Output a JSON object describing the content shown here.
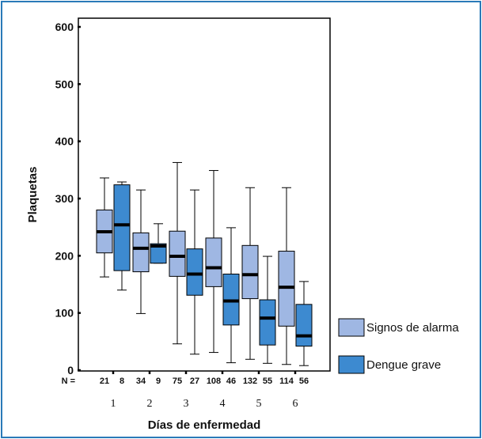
{
  "chart_data": {
    "type": "boxplot",
    "xlabel": "Días de enfermedad",
    "ylabel": "Plaquetas",
    "ylim": [
      0,
      600
    ],
    "yticks": [
      0,
      100,
      200,
      300,
      400,
      500,
      600
    ],
    "categories": [
      "1",
      "2",
      "3",
      "4",
      "5",
      "6"
    ],
    "n_prefix": "N =",
    "legend_position": "right",
    "series": [
      {
        "name": "Signos de alarma",
        "color": "#9fb7e3",
        "n": [
          "21",
          "34",
          "75",
          "108",
          "132",
          "114"
        ],
        "boxes": [
          {
            "min": 163,
            "q1": 205,
            "median": 242,
            "q3": 280,
            "max": 336
          },
          {
            "min": 99,
            "q1": 172,
            "median": 213,
            "q3": 240,
            "max": 315
          },
          {
            "min": 46,
            "q1": 164,
            "median": 199,
            "q3": 243,
            "max": 363
          },
          {
            "min": 31,
            "q1": 146,
            "median": 179,
            "q3": 231,
            "max": 349
          },
          {
            "min": 19,
            "q1": 125,
            "median": 167,
            "q3": 218,
            "max": 319
          },
          {
            "min": 10,
            "q1": 77,
            "median": 145,
            "q3": 208,
            "max": 319
          }
        ]
      },
      {
        "name": "Dengue grave",
        "color": "#3d8ad0",
        "n": [
          "8",
          "9",
          "27",
          "46",
          "55",
          "56"
        ],
        "boxes": [
          {
            "min": 140,
            "q1": 174,
            "median": 254,
            "q3": 324,
            "max": 329
          },
          {
            "min": 187,
            "q1": 187,
            "median": 217,
            "q3": 221,
            "max": 256
          },
          {
            "min": 28,
            "q1": 131,
            "median": 168,
            "q3": 212,
            "max": 315
          },
          {
            "min": 13,
            "q1": 79,
            "median": 121,
            "q3": 168,
            "max": 249
          },
          {
            "min": 12,
            "q1": 44,
            "median": 91,
            "q3": 123,
            "max": 199
          },
          {
            "min": 8,
            "q1": 42,
            "median": 60,
            "q3": 115,
            "max": 155
          }
        ]
      }
    ]
  }
}
